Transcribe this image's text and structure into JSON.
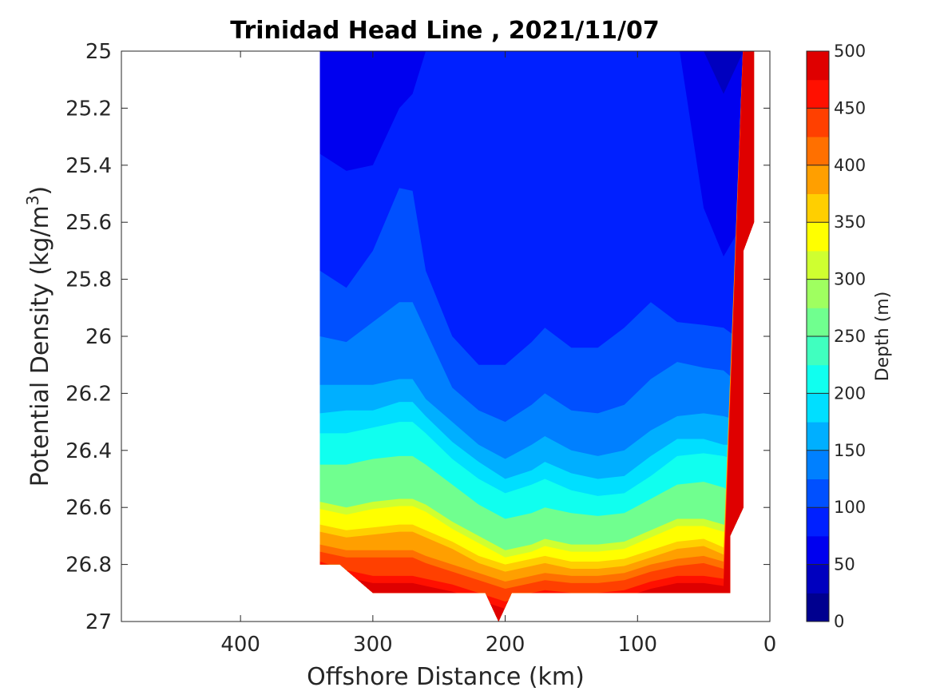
{
  "chart_data": {
    "type": "contourf",
    "title": "Trinidad Head Line , 2021/11/07",
    "xlabel": "Offshore Distance (km)",
    "ylabel": "Potential Density (kg/m",
    "ylabel_sup": "3",
    "ylabel_close": ")",
    "xlim": [
      490,
      0
    ],
    "x_reversed": true,
    "ylim": [
      25,
      27
    ],
    "y_reversed": true,
    "x_ticks": [
      "400",
      "300",
      "200",
      "100",
      "0"
    ],
    "y_ticks": [
      "25",
      "25.2",
      "25.4",
      "25.6",
      "25.8",
      "26",
      "26.2",
      "26.4",
      "26.6",
      "26.8",
      "27"
    ],
    "colorbar": {
      "label": "Depth (m)",
      "range": [
        0,
        500
      ],
      "level_step": 25,
      "tick_labels": [
        "0",
        "50",
        "100",
        "150",
        "200",
        "250",
        "300",
        "350",
        "400",
        "450",
        "500"
      ],
      "colormap": "jet",
      "colors": [
        "#00008f",
        "#0000bf",
        "#0000ef",
        "#0020ff",
        "#0050ff",
        "#0080ff",
        "#00afff",
        "#00dfff",
        "#10ffef",
        "#40ffbf",
        "#70ff8f",
        "#9fff60",
        "#cfff30",
        "#ffff00",
        "#ffcf00",
        "#ff9f00",
        "#ff7000",
        "#ff4000",
        "#ff1000",
        "#df0000",
        "#af0000"
      ]
    },
    "stations_km": [
      340,
      320,
      300,
      280,
      270,
      260,
      240,
      220,
      200,
      180,
      170,
      150,
      130,
      110,
      90,
      70,
      50,
      35,
      20
    ],
    "depth_contours": [
      {
        "depth": 50,
        "sigma": [
          null,
          null,
          null,
          null,
          null,
          null,
          null,
          null,
          null,
          null,
          null,
          null,
          null,
          null,
          null,
          null,
          25.0,
          25.15,
          25.0
        ]
      },
      {
        "depth": 75,
        "sigma": [
          25.36,
          25.42,
          25.4,
          25.2,
          25.15,
          25.0,
          null,
          null,
          null,
          null,
          null,
          null,
          null,
          null,
          null,
          null,
          25.55,
          25.72,
          25.6
        ]
      },
      {
        "depth": 100,
        "sigma": [
          25.77,
          25.83,
          25.7,
          25.48,
          25.49,
          25.77,
          26.0,
          26.1,
          26.1,
          26.02,
          25.97,
          26.04,
          26.04,
          25.97,
          25.88,
          25.95,
          25.96,
          25.97,
          26.02
        ]
      },
      {
        "depth": 125,
        "sigma": [
          26.0,
          26.02,
          25.95,
          25.88,
          25.88,
          25.98,
          26.18,
          26.26,
          26.3,
          26.24,
          26.2,
          26.26,
          26.27,
          26.24,
          26.15,
          26.09,
          26.11,
          26.12,
          26.18
        ]
      },
      {
        "depth": 150,
        "sigma": [
          26.17,
          26.17,
          26.17,
          26.15,
          26.15,
          26.22,
          26.3,
          26.38,
          26.43,
          26.38,
          26.35,
          26.4,
          26.42,
          26.4,
          26.33,
          26.28,
          26.27,
          26.28,
          26.3
        ]
      },
      {
        "depth": 175,
        "sigma": [
          26.27,
          26.26,
          26.26,
          26.23,
          26.23,
          26.28,
          26.37,
          26.44,
          26.5,
          26.47,
          26.44,
          26.48,
          26.5,
          26.49,
          26.42,
          26.36,
          26.36,
          26.38,
          26.38
        ]
      },
      {
        "depth": 200,
        "sigma": [
          26.34,
          26.34,
          26.32,
          26.3,
          26.3,
          26.34,
          26.43,
          26.5,
          26.55,
          26.52,
          26.5,
          26.54,
          26.56,
          26.55,
          26.49,
          26.42,
          26.41,
          26.42,
          26.44
        ]
      },
      {
        "depth": 250,
        "sigma": [
          26.45,
          26.45,
          26.43,
          26.42,
          26.42,
          26.45,
          26.52,
          26.59,
          26.64,
          26.62,
          26.6,
          26.62,
          26.63,
          26.62,
          26.57,
          26.52,
          26.51,
          26.53,
          26.57
        ]
      },
      {
        "depth": 300,
        "sigma": [
          26.58,
          26.6,
          26.58,
          26.57,
          26.57,
          26.59,
          26.65,
          26.7,
          26.75,
          26.73,
          26.71,
          26.73,
          26.73,
          26.72,
          26.68,
          26.64,
          26.64,
          26.66,
          26.68
        ]
      },
      {
        "depth": 350,
        "sigma": [
          26.66,
          26.68,
          26.67,
          26.66,
          26.66,
          26.68,
          26.72,
          26.77,
          26.8,
          26.78,
          26.77,
          26.79,
          26.79,
          26.78,
          26.75,
          26.72,
          26.71,
          26.74,
          null
        ]
      },
      {
        "depth": 400,
        "sigma": [
          26.73,
          26.75,
          26.75,
          26.75,
          26.75,
          26.77,
          26.8,
          26.83,
          26.86,
          26.84,
          26.83,
          26.84,
          26.84,
          26.83,
          26.8,
          26.78,
          26.77,
          26.79,
          null
        ]
      },
      {
        "depth": 450,
        "sigma": [
          26.79,
          26.82,
          26.84,
          26.84,
          26.84,
          26.85,
          26.87,
          26.9,
          26.93,
          26.9,
          26.89,
          26.9,
          26.9,
          26.89,
          26.86,
          26.84,
          26.84,
          26.85,
          null
        ]
      }
    ],
    "data_extent": {
      "x": [
        340,
        340,
        325,
        300,
        300,
        215,
        205,
        195,
        30,
        30,
        20,
        20,
        12,
        12
      ],
      "sigma": [
        25.0,
        26.8,
        26.8,
        26.9,
        26.9,
        26.9,
        27.0,
        26.9,
        26.9,
        26.7,
        26.6,
        25.7,
        25.6,
        25.0
      ]
    }
  }
}
